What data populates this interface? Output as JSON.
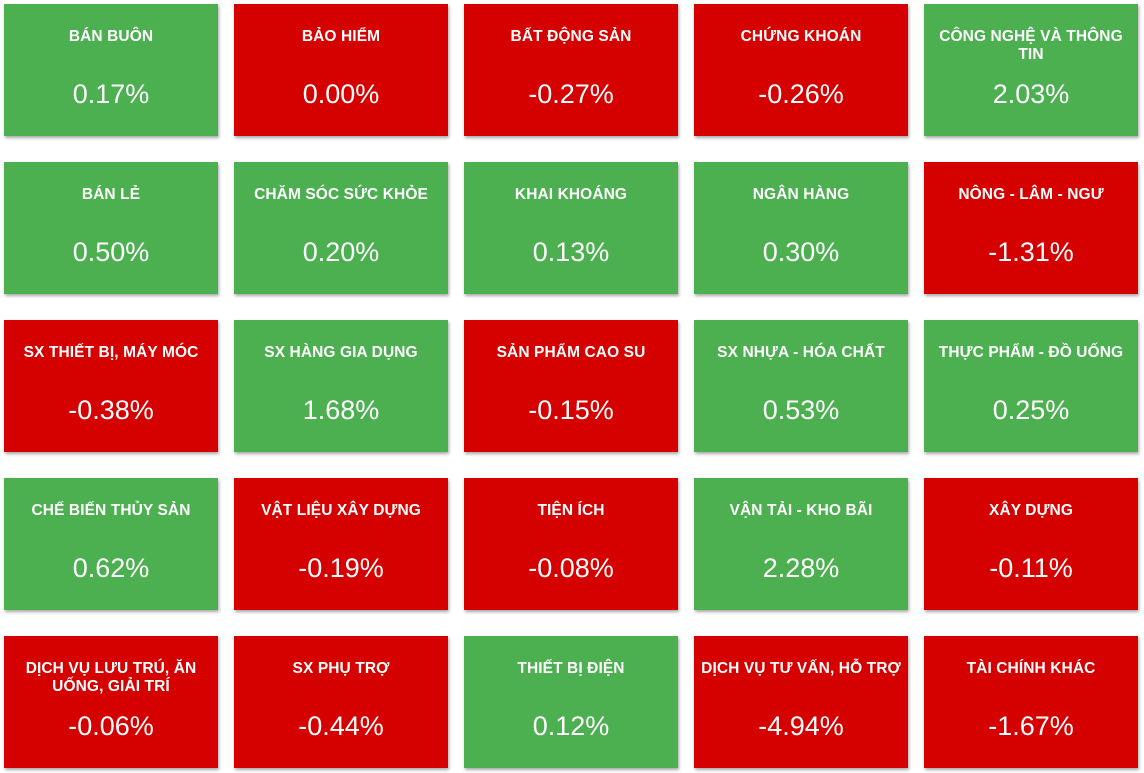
{
  "colors": {
    "up": "#4caf50",
    "down": "#d50000",
    "text": "#ffffff"
  },
  "sectors": [
    {
      "name": "BÁN BUÔN",
      "change": "0.17%",
      "trend": "up"
    },
    {
      "name": "BẢO HIỂM",
      "change": "0.00%",
      "trend": "down"
    },
    {
      "name": "BẤT ĐỘNG SẢN",
      "change": "-0.27%",
      "trend": "down"
    },
    {
      "name": "CHỨNG KHOÁN",
      "change": "-0.26%",
      "trend": "down"
    },
    {
      "name": "CÔNG NGHỆ VÀ THÔNG TIN",
      "change": "2.03%",
      "trend": "up"
    },
    {
      "name": "BÁN LẺ",
      "change": "0.50%",
      "trend": "up"
    },
    {
      "name": "CHĂM SÓC SỨC KHỎE",
      "change": "0.20%",
      "trend": "up"
    },
    {
      "name": "KHAI KHOÁNG",
      "change": "0.13%",
      "trend": "up"
    },
    {
      "name": "NGÂN HÀNG",
      "change": "0.30%",
      "trend": "up"
    },
    {
      "name": "NÔNG - LÂM - NGƯ",
      "change": "-1.31%",
      "trend": "down"
    },
    {
      "name": "SX THIẾT BỊ, MÁY MÓC",
      "change": "-0.38%",
      "trend": "down"
    },
    {
      "name": "SX HÀNG GIA DỤNG",
      "change": "1.68%",
      "trend": "up"
    },
    {
      "name": "SẢN PHẨM CAO SU",
      "change": "-0.15%",
      "trend": "down"
    },
    {
      "name": "SX NHỰA - HÓA CHẤT",
      "change": "0.53%",
      "trend": "up"
    },
    {
      "name": "THỰC PHẨM - ĐỒ UỐNG",
      "change": "0.25%",
      "trend": "up"
    },
    {
      "name": "CHẾ BIẾN THỦY SẢN",
      "change": "0.62%",
      "trend": "up"
    },
    {
      "name": "VẬT LIỆU XÂY DỰNG",
      "change": "-0.19%",
      "trend": "down"
    },
    {
      "name": "TIỆN ÍCH",
      "change": "-0.08%",
      "trend": "down"
    },
    {
      "name": "VẬN TẢI - KHO BÃI",
      "change": "2.28%",
      "trend": "up"
    },
    {
      "name": "XÂY DỰNG",
      "change": "-0.11%",
      "trend": "down"
    },
    {
      "name": "DỊCH VỤ LƯU TRÚ, ĂN UỐNG, GIẢI TRÍ",
      "change": "-0.06%",
      "trend": "down"
    },
    {
      "name": "SX PHỤ TRỢ",
      "change": "-0.44%",
      "trend": "down"
    },
    {
      "name": "THIẾT BỊ ĐIỆN",
      "change": "0.12%",
      "trend": "up"
    },
    {
      "name": "DỊCH VỤ TƯ VẤN, HỖ TRỢ",
      "change": "-4.94%",
      "trend": "down"
    },
    {
      "name": "TÀI CHÍNH KHÁC",
      "change": "-1.67%",
      "trend": "down"
    }
  ]
}
